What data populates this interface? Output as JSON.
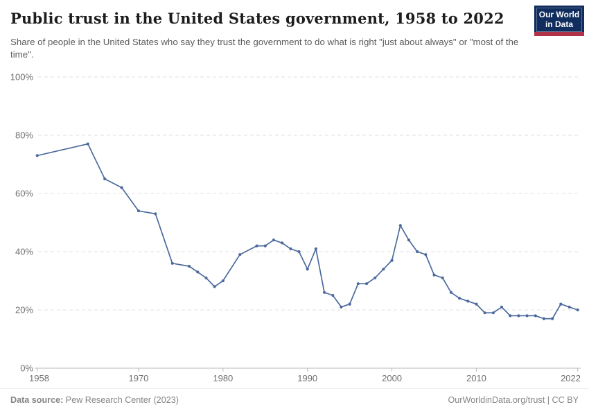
{
  "header": {
    "title": "Public trust in the United States government, 1958 to 2022",
    "logo": {
      "line1": "Our World",
      "line2": "in Data"
    }
  },
  "subtitle": "Share of people in the United States who say they trust the government to do what is right \"just about always\" or \"most of the time\".",
  "footer": {
    "source_label": "Data source:",
    "source_value": " Pew Research Center (2023)",
    "right_text": "OurWorldinData.org/trust | CC BY"
  },
  "colors": {
    "line": "#4c6a9c",
    "grid": "#e0e0e0",
    "axis": "#b9b9b9",
    "axis_text": "#6e6e6e",
    "logo_navy": "#102d5e",
    "logo_red": "#b03349"
  },
  "chart_data": {
    "type": "line",
    "title": "Public trust in the United States government, 1958 to 2022",
    "xlabel": "",
    "ylabel": "",
    "x": [
      1958,
      1964,
      1966,
      1968,
      1970,
      1972,
      1974,
      1976,
      1977,
      1978,
      1979,
      1980,
      1982,
      1984,
      1985,
      1986,
      1987,
      1988,
      1989,
      1990,
      1991,
      1992,
      1993,
      1994,
      1995,
      1996,
      1997,
      1998,
      1999,
      2000,
      2001,
      2002,
      2003,
      2004,
      2005,
      2006,
      2007,
      2008,
      2009,
      2010,
      2011,
      2012,
      2013,
      2014,
      2015,
      2016,
      2017,
      2018,
      2019,
      2020,
      2021,
      2022
    ],
    "series": [
      {
        "name": "United States",
        "values": [
          73,
          77,
          65,
          62,
          54,
          53,
          36,
          35,
          33,
          31,
          28,
          30,
          39,
          42,
          42,
          44,
          43,
          41,
          40,
          34,
          41,
          26,
          25,
          21,
          22,
          29,
          29,
          31,
          34,
          37,
          49,
          44,
          40,
          39,
          32,
          31,
          26,
          24,
          23,
          22,
          19,
          19,
          21,
          18,
          18,
          18,
          18,
          17,
          17,
          22,
          21,
          20
        ]
      }
    ],
    "ylim": [
      0,
      100
    ],
    "xlim": [
      1958,
      2022
    ],
    "yticks": [
      {
        "value": 0,
        "label": "0%"
      },
      {
        "value": 20,
        "label": "20%"
      },
      {
        "value": 40,
        "label": "40%"
      },
      {
        "value": 60,
        "label": "60%"
      },
      {
        "value": 80,
        "label": "80%"
      },
      {
        "value": 100,
        "label": "100%"
      }
    ],
    "xticks": [
      1958,
      1970,
      1980,
      1990,
      2000,
      2010,
      2022
    ],
    "grid": "horizontal-dashed",
    "legend_position": "none"
  }
}
